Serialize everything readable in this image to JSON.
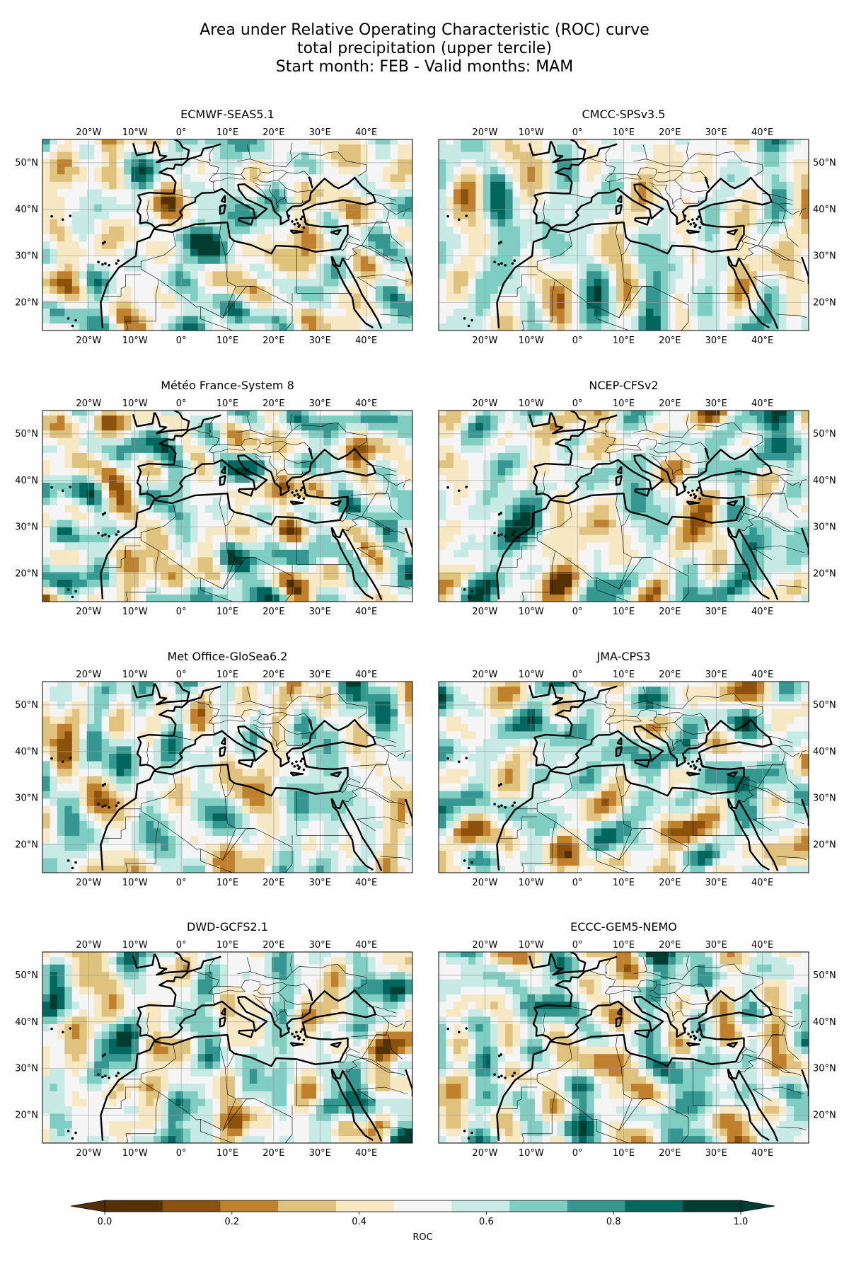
{
  "title": {
    "line1": "Area under Relative Operating Characteristic (ROC) curve",
    "line2": "total precipitation (upper tercile)",
    "line3": "Start month: FEB - Valid months: MAM"
  },
  "axes": {
    "lon_labels": [
      "20°W",
      "10°W",
      "0°",
      "10°E",
      "20°E",
      "30°E",
      "40°E"
    ],
    "lon_values": [
      -20,
      -10,
      0,
      10,
      20,
      30,
      40
    ],
    "lat_labels": [
      "50°N",
      "40°N",
      "30°N",
      "20°N"
    ],
    "lat_values": [
      50,
      40,
      30,
      20
    ],
    "lon_range": [
      -30,
      50
    ],
    "lat_range": [
      14,
      55
    ]
  },
  "panels": [
    {
      "name": "ECMWF-SEAS5.1",
      "lat_side": "left"
    },
    {
      "name": "CMCC-SPSv3.5",
      "lat_side": "right"
    },
    {
      "name": "Météo France-System 8",
      "lat_side": "left"
    },
    {
      "name": "NCEP-CFSv2",
      "lat_side": "right"
    },
    {
      "name": "Met Office-GloSea6.2",
      "lat_side": "left"
    },
    {
      "name": "JMA-CPS3",
      "lat_side": "right"
    },
    {
      "name": "DWD-GCFS2.1",
      "lat_side": "left"
    },
    {
      "name": "ECCC-GEM5-NEMO",
      "lat_side": "right"
    }
  ],
  "colorbar": {
    "label": "ROC",
    "tick_labels": [
      "0.0",
      "0.2",
      "0.4",
      "0.6",
      "0.8",
      "1.0"
    ],
    "tick_values": [
      0.0,
      0.2,
      0.4,
      0.6,
      0.8,
      1.0
    ],
    "levels": [
      0.0,
      0.1,
      0.2,
      0.3,
      0.4,
      0.5,
      0.6,
      0.7,
      0.8,
      0.9,
      1.0
    ],
    "colors": [
      "#543005",
      "#8c510a",
      "#bf812d",
      "#dfc27d",
      "#f6e8c3",
      "#f5f5f5",
      "#c7eae5",
      "#80cdc1",
      "#35978f",
      "#01665e",
      "#003c30"
    ],
    "under_color": "#543005",
    "over_color": "#003c30",
    "extend": "both"
  },
  "colors": {
    "coastline": "#000000",
    "border": "#000000",
    "grid": "#9a9a9a"
  }
}
